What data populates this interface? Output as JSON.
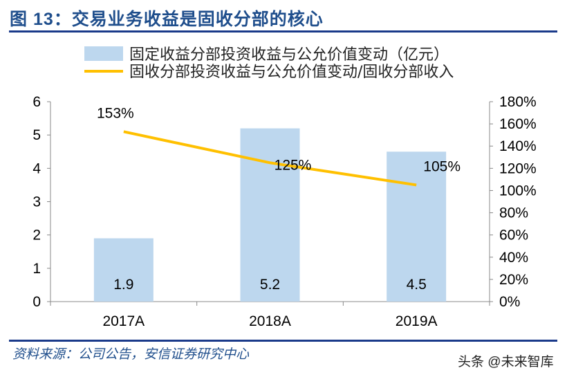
{
  "header": {
    "title": "图 13：交易业务收益是固收分部的核心"
  },
  "footer": {
    "source": "资料来源：公司公告，安信证券研究中心",
    "watermark": "头条 @未来智库"
  },
  "chart_data": {
    "type": "bar+line",
    "categories": [
      "2017A",
      "2018A",
      "2019A"
    ],
    "series": [
      {
        "name": "固定收益分部投资收益与公允价值变动（亿元）",
        "type": "bar",
        "axis": "left",
        "values": [
          1.9,
          5.2,
          4.5
        ],
        "labels": [
          "1.9",
          "5.2",
          "4.5"
        ],
        "color": "#bdd7ee"
      },
      {
        "name": "固收分部投资收益与公允价值变动/固收分部收入",
        "type": "line",
        "axis": "right",
        "values": [
          153,
          125,
          105
        ],
        "labels": [
          "153%",
          "125%",
          "105%"
        ],
        "color": "#ffc000"
      }
    ],
    "y_left": {
      "min": 0,
      "max": 6,
      "ticks": [
        "0",
        "1",
        "2",
        "3",
        "4",
        "5",
        "6"
      ]
    },
    "y_right": {
      "min": 0,
      "max": 180,
      "ticks": [
        "0%",
        "20%",
        "40%",
        "60%",
        "80%",
        "100%",
        "120%",
        "140%",
        "160%",
        "180%"
      ]
    },
    "grid": false,
    "legend": "top"
  }
}
